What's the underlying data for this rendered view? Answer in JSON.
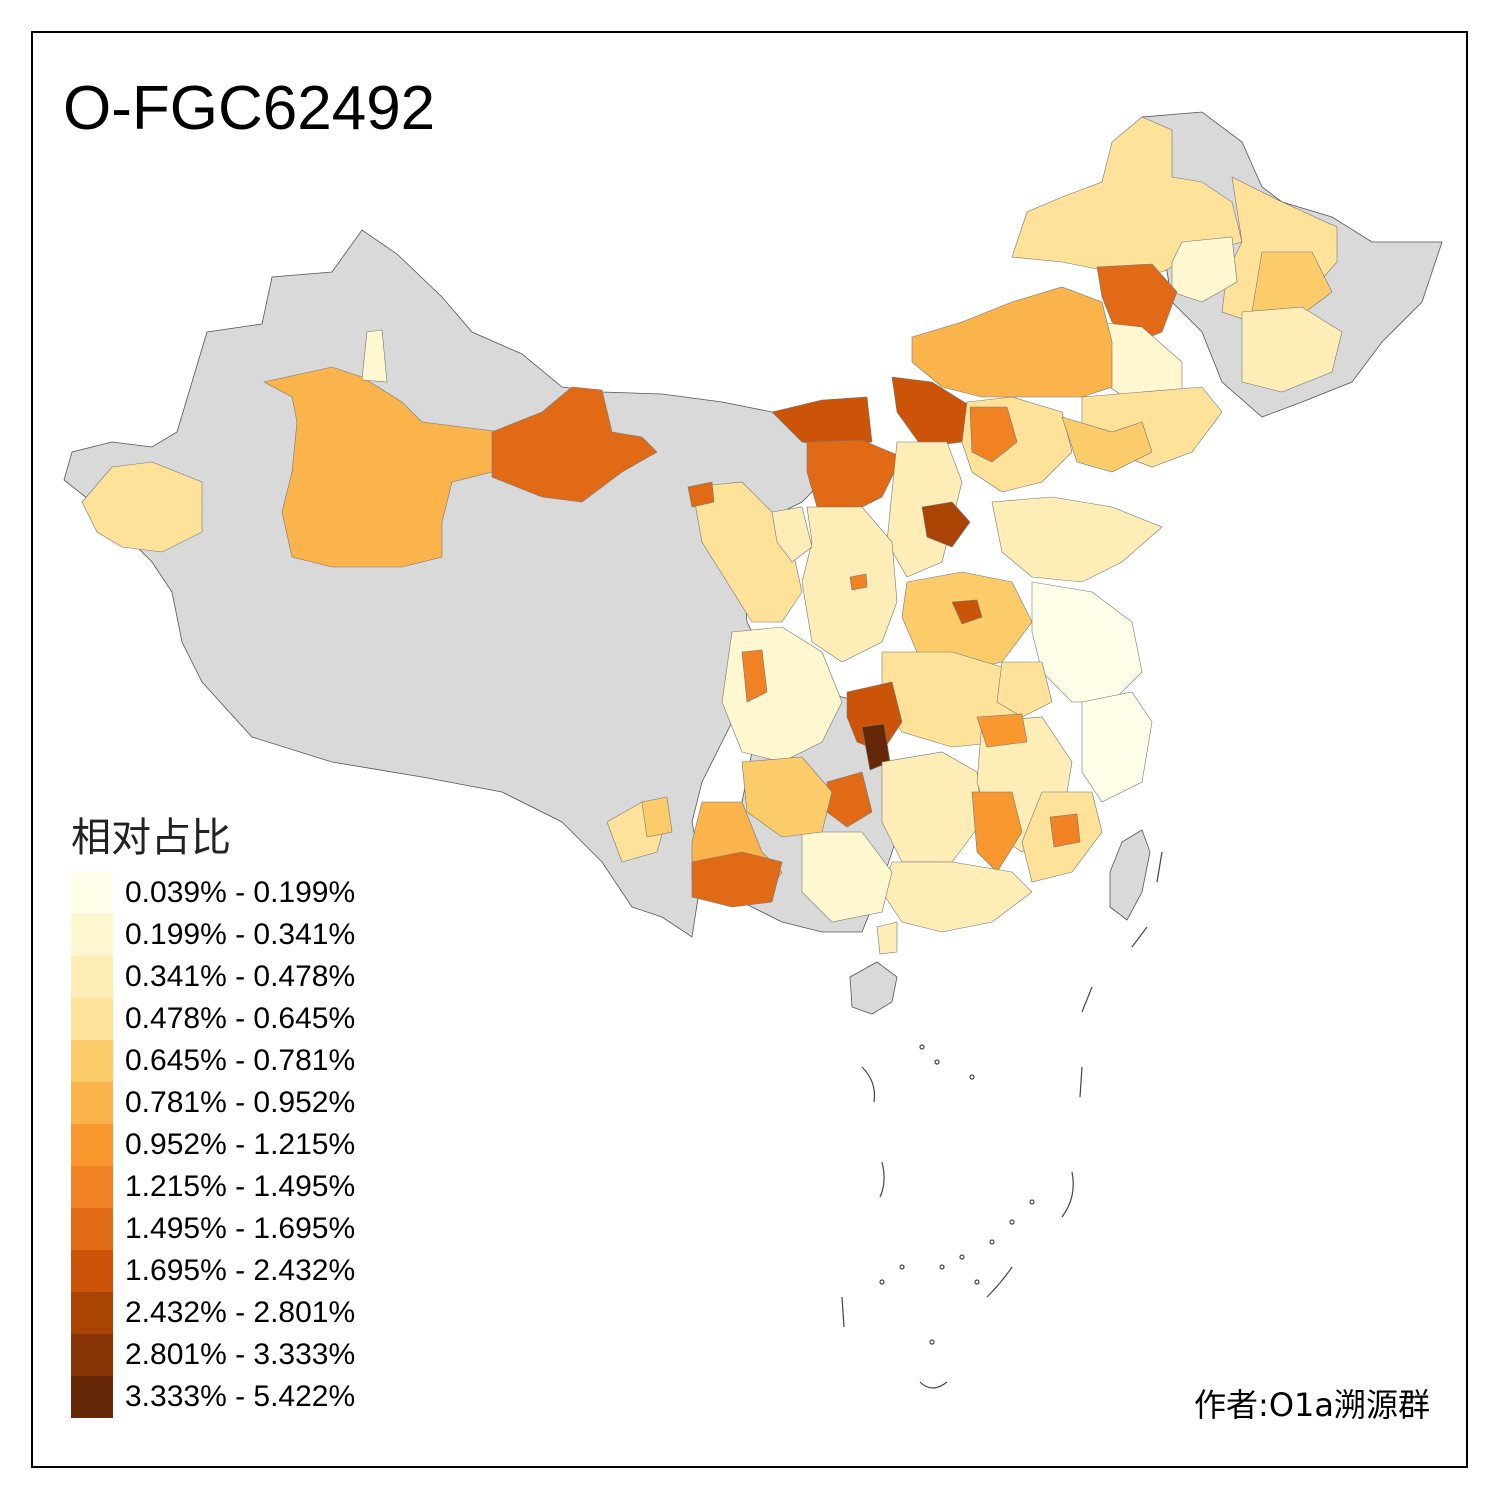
{
  "title": "O-FGC62492",
  "legend": {
    "title": "相对占比",
    "items": [
      {
        "label": "0.039% - 0.199%",
        "color": "#FFFEE8"
      },
      {
        "label": "0.199% - 0.341%",
        "color": "#FFF7CF"
      },
      {
        "label": "0.341% - 0.478%",
        "color": "#FEEDB6"
      },
      {
        "label": "0.478% - 0.645%",
        "color": "#FEE29A"
      },
      {
        "label": "0.645% - 0.781%",
        "color": "#FDCC6A"
      },
      {
        "label": "0.781% - 0.952%",
        "color": "#FBB44B"
      },
      {
        "label": "0.952% - 1.215%",
        "color": "#F9982F"
      },
      {
        "label": "1.215% - 1.495%",
        "color": "#F08223"
      },
      {
        "label": "1.495% - 1.695%",
        "color": "#E06A15"
      },
      {
        "label": "1.695% - 2.432%",
        "color": "#CB5409"
      },
      {
        "label": "2.432% - 2.801%",
        "color": "#A94405"
      },
      {
        "label": "2.801% - 3.333%",
        "color": "#873506"
      },
      {
        "label": "3.333% - 5.422%",
        "color": "#652807"
      }
    ]
  },
  "no_data_color": "#D9D9D9",
  "author": "作者:O1a溯源群"
}
